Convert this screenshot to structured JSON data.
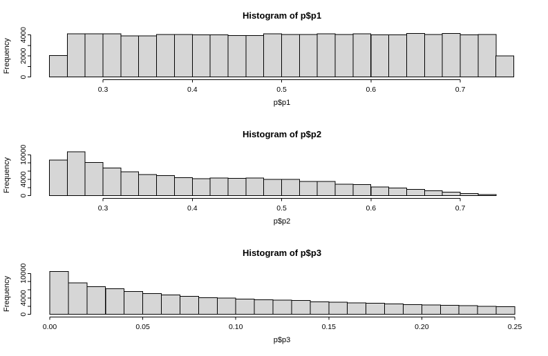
{
  "figure": {
    "background": "#ffffff",
    "bar_fill": "#d6d6d6",
    "bar_stroke": "#000000",
    "axis_color": "#000000",
    "text_color": "#000000"
  },
  "chart_data": [
    {
      "type": "bar",
      "title": "Histogram of p$p1",
      "xlabel": "p$p1",
      "ylabel": "Frequency",
      "bin_start": 0.24,
      "bin_width": 0.02,
      "counts": [
        2050,
        4110,
        4110,
        4110,
        3910,
        3920,
        4050,
        4050,
        4000,
        4000,
        3960,
        3960,
        4110,
        4050,
        4050,
        4110,
        4050,
        4110,
        4000,
        4000,
        4150,
        4050,
        4150,
        4000,
        4050,
        2020
      ],
      "xlim": [
        0.24,
        0.76
      ],
      "ylim": [
        0,
        4000
      ],
      "grid": false,
      "legend": null,
      "x_axis": {
        "line_from": 0.3,
        "line_to": 0.7,
        "ticks": [
          {
            "v": 0.3,
            "label": "0.3"
          },
          {
            "v": 0.4,
            "label": "0.4"
          },
          {
            "v": 0.5,
            "label": "0.5"
          },
          {
            "v": 0.6,
            "label": "0.6"
          },
          {
            "v": 0.7,
            "label": "0.7"
          }
        ]
      },
      "y_axis": {
        "max": 4000,
        "ticks": [
          {
            "v": 0,
            "label": "0"
          },
          {
            "v": 1000,
            "label": ""
          },
          {
            "v": 2000,
            "label": "2000"
          },
          {
            "v": 3000,
            "label": ""
          },
          {
            "v": 4000,
            "label": "4000"
          }
        ]
      }
    },
    {
      "type": "bar",
      "title": "Histogram of p$p2",
      "xlabel": "p$p2",
      "ylabel": "Frequency",
      "bin_start": 0.24,
      "bin_width": 0.02,
      "counts": [
        8700,
        10700,
        8100,
        6800,
        5850,
        5150,
        4900,
        4450,
        4200,
        4300,
        4250,
        4300,
        3950,
        3990,
        3500,
        3450,
        2850,
        2700,
        2100,
        1900,
        1550,
        1250,
        900,
        500,
        270
      ],
      "xlim": [
        0.24,
        0.74
      ],
      "ylim": [
        0,
        10000
      ],
      "grid": false,
      "legend": null,
      "x_axis": {
        "line_from": 0.3,
        "line_to": 0.7,
        "ticks": [
          {
            "v": 0.3,
            "label": "0.3"
          },
          {
            "v": 0.4,
            "label": "0.4"
          },
          {
            "v": 0.5,
            "label": "0.5"
          },
          {
            "v": 0.6,
            "label": "0.6"
          },
          {
            "v": 0.7,
            "label": "0.7"
          }
        ]
      },
      "y_axis": {
        "max": 10000,
        "ticks": [
          {
            "v": 0,
            "label": "0"
          },
          {
            "v": 2000,
            "label": ""
          },
          {
            "v": 4000,
            "label": "4000"
          },
          {
            "v": 6000,
            "label": ""
          },
          {
            "v": 8000,
            "label": ""
          },
          {
            "v": 10000,
            "label": "10000"
          }
        ]
      }
    },
    {
      "type": "bar",
      "title": "Histogram of p$p3",
      "xlabel": "p$p3",
      "ylabel": "Frequency",
      "bin_start": 0.0,
      "bin_width": 0.01,
      "counts": [
        10500,
        7700,
        6800,
        6300,
        5600,
        5100,
        4750,
        4450,
        4100,
        3950,
        3700,
        3600,
        3450,
        3400,
        3100,
        2950,
        2800,
        2700,
        2550,
        2400,
        2300,
        2200,
        2100,
        2000,
        1900
      ],
      "xlim": [
        0.0,
        0.25
      ],
      "ylim": [
        0,
        10000
      ],
      "grid": false,
      "legend": null,
      "x_axis": {
        "line_from": 0.0,
        "line_to": 0.25,
        "ticks": [
          {
            "v": 0.0,
            "label": "0.00"
          },
          {
            "v": 0.05,
            "label": "0.05"
          },
          {
            "v": 0.1,
            "label": "0.10"
          },
          {
            "v": 0.15,
            "label": "0.15"
          },
          {
            "v": 0.2,
            "label": "0.20"
          },
          {
            "v": 0.25,
            "label": "0.25"
          }
        ]
      },
      "y_axis": {
        "max": 10000,
        "ticks": [
          {
            "v": 0,
            "label": "0"
          },
          {
            "v": 2000,
            "label": ""
          },
          {
            "v": 4000,
            "label": "4000"
          },
          {
            "v": 6000,
            "label": ""
          },
          {
            "v": 8000,
            "label": ""
          },
          {
            "v": 10000,
            "label": "10000"
          }
        ]
      }
    }
  ]
}
